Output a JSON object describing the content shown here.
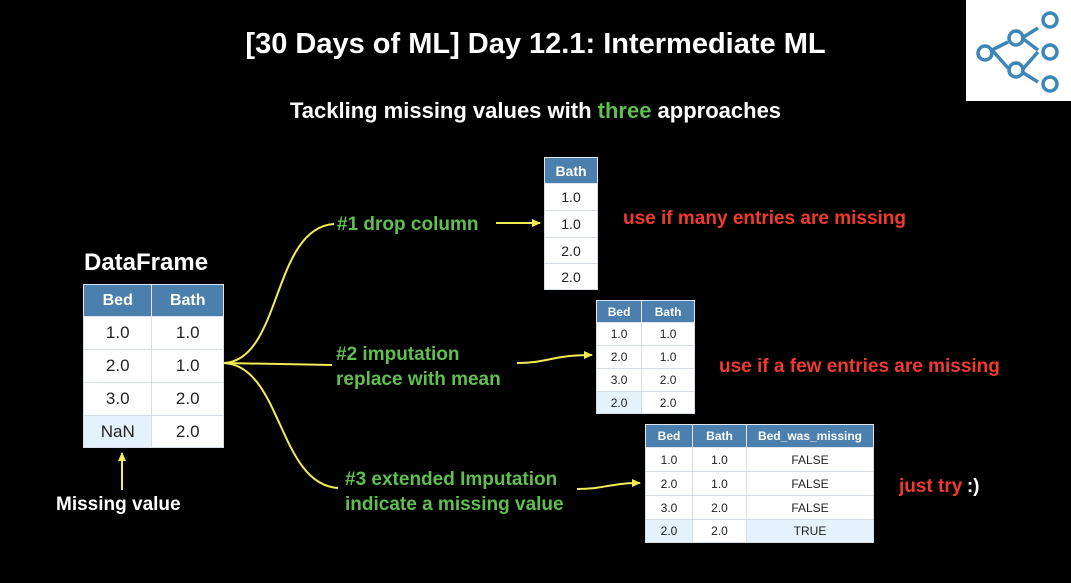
{
  "title": "[30 Days of ML] Day 12.1: Intermediate ML",
  "subtitle": {
    "before": "Tackling missing values with ",
    "accent": "three",
    "after": " approaches"
  },
  "dataframe": {
    "label": "DataFrame",
    "headers": [
      "Bed",
      "Bath"
    ],
    "rows": [
      [
        "1.0",
        "1.0"
      ],
      [
        "2.0",
        "1.0"
      ],
      [
        "3.0",
        "2.0"
      ],
      [
        "NaN",
        "2.0"
      ]
    ],
    "missing_label": "Missing value"
  },
  "approaches": [
    {
      "lines": [
        "#1 drop column"
      ],
      "note": "use if many entries are missing",
      "table": {
        "headers": [
          "Bath"
        ],
        "rows": [
          [
            "1.0"
          ],
          [
            "1.0"
          ],
          [
            "2.0"
          ],
          [
            "2.0"
          ]
        ]
      }
    },
    {
      "lines": [
        "#2 imputation",
        "replace with mean"
      ],
      "note": "use if a few entries are missing",
      "table": {
        "headers": [
          "Bed",
          "Bath"
        ],
        "rows": [
          [
            "1.0",
            "1.0"
          ],
          [
            "2.0",
            "1.0"
          ],
          [
            "3.0",
            "2.0"
          ],
          [
            "2.0",
            "2.0"
          ]
        ]
      }
    },
    {
      "lines": [
        "#3 extended Imputation",
        "indicate a missing value"
      ],
      "note": "just try",
      "note_suffix": ":)",
      "table": {
        "headers": [
          "Bed",
          "Bath",
          "Bed_was_missing"
        ],
        "rows": [
          [
            "1.0",
            "1.0",
            "FALSE"
          ],
          [
            "2.0",
            "1.0",
            "FALSE"
          ],
          [
            "3.0",
            "2.0",
            "FALSE"
          ],
          [
            "2.0",
            "2.0",
            "TRUE"
          ]
        ]
      }
    }
  ],
  "colors": {
    "background": "#000000",
    "accent_green": "#5fbf4f",
    "note_red": "#f03a2e",
    "table_header": "#4a7fae",
    "highlight_cell": "#e3f2fb",
    "connector": "#f2ec55"
  },
  "logo_icon": "network-graph-icon"
}
